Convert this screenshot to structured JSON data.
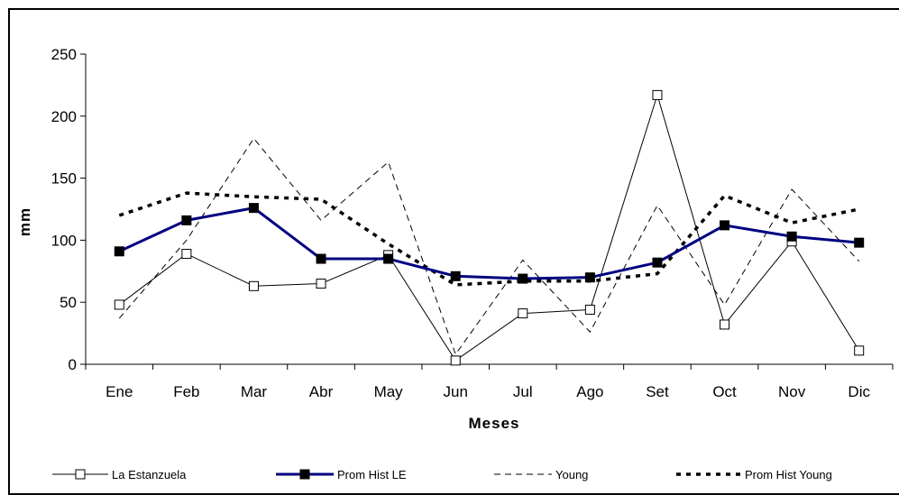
{
  "chart_data": {
    "type": "line",
    "xlabel": "Meses",
    "ylabel": "mm",
    "ylim": [
      0,
      250
    ],
    "yticks": [
      0,
      50,
      100,
      150,
      200,
      250
    ],
    "grid": false,
    "legend_position": "bottom",
    "categories": [
      "Ene",
      "Feb",
      "Mar",
      "Abr",
      "May",
      "Jun",
      "Jul",
      "Ago",
      "Set",
      "Oct",
      "Nov",
      "Dic"
    ],
    "series": [
      {
        "name": "La Estanzuela",
        "style": "thin-solid-open-square",
        "color": "#000000",
        "values": [
          48,
          89,
          63,
          65,
          88,
          3,
          41,
          44,
          217,
          32,
          99,
          11
        ]
      },
      {
        "name": "Prom Hist LE",
        "style": "thick-solid-filled-square",
        "color": "#000080",
        "values": [
          91,
          116,
          126,
          85,
          85,
          71,
          69,
          70,
          82,
          112,
          103,
          98
        ]
      },
      {
        "name": "Young",
        "style": "thin-dashed",
        "color": "#000000",
        "values": [
          37,
          100,
          182,
          116,
          163,
          8,
          84,
          26,
          128,
          48,
          141,
          83
        ]
      },
      {
        "name": "Prom Hist Young",
        "style": "thick-dotted",
        "color": "#000000",
        "values": [
          120,
          138,
          135,
          133,
          97,
          64,
          67,
          67,
          73,
          136,
          114,
          125
        ]
      }
    ]
  }
}
